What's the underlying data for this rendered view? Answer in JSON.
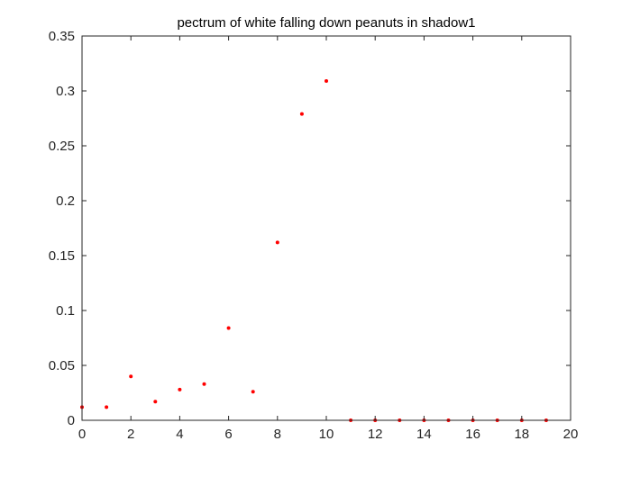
{
  "chart_data": {
    "type": "scatter",
    "title": "pectrum of white falling down peanuts in shadow1",
    "xlabel": "",
    "ylabel": "",
    "xlim": [
      0,
      20
    ],
    "ylim": [
      0,
      0.35
    ],
    "xticks": [
      0,
      2,
      4,
      6,
      8,
      10,
      12,
      14,
      16,
      18,
      20
    ],
    "yticks": [
      0,
      0.05,
      0.1,
      0.15,
      0.2,
      0.25,
      0.3,
      0.35
    ],
    "xtick_labels": [
      "0",
      "2",
      "4",
      "6",
      "8",
      "10",
      "12",
      "14",
      "16",
      "18",
      "20"
    ],
    "ytick_labels": [
      "0",
      "0.05",
      "0.1",
      "0.15",
      "0.2",
      "0.25",
      "0.3",
      "0.35"
    ],
    "grid": false,
    "series": [
      {
        "color": "#ff0000",
        "x": [
          0,
          1,
          2,
          3,
          4,
          5,
          6,
          7,
          8,
          9,
          10,
          11,
          12,
          13,
          14,
          15,
          16,
          17,
          18,
          19
        ],
        "y": [
          0.012,
          0.012,
          0.04,
          0.017,
          0.028,
          0.033,
          0.084,
          0.026,
          0.162,
          0.279,
          0.309,
          0,
          0,
          0,
          0,
          0,
          0,
          0,
          0,
          0
        ]
      }
    ]
  }
}
